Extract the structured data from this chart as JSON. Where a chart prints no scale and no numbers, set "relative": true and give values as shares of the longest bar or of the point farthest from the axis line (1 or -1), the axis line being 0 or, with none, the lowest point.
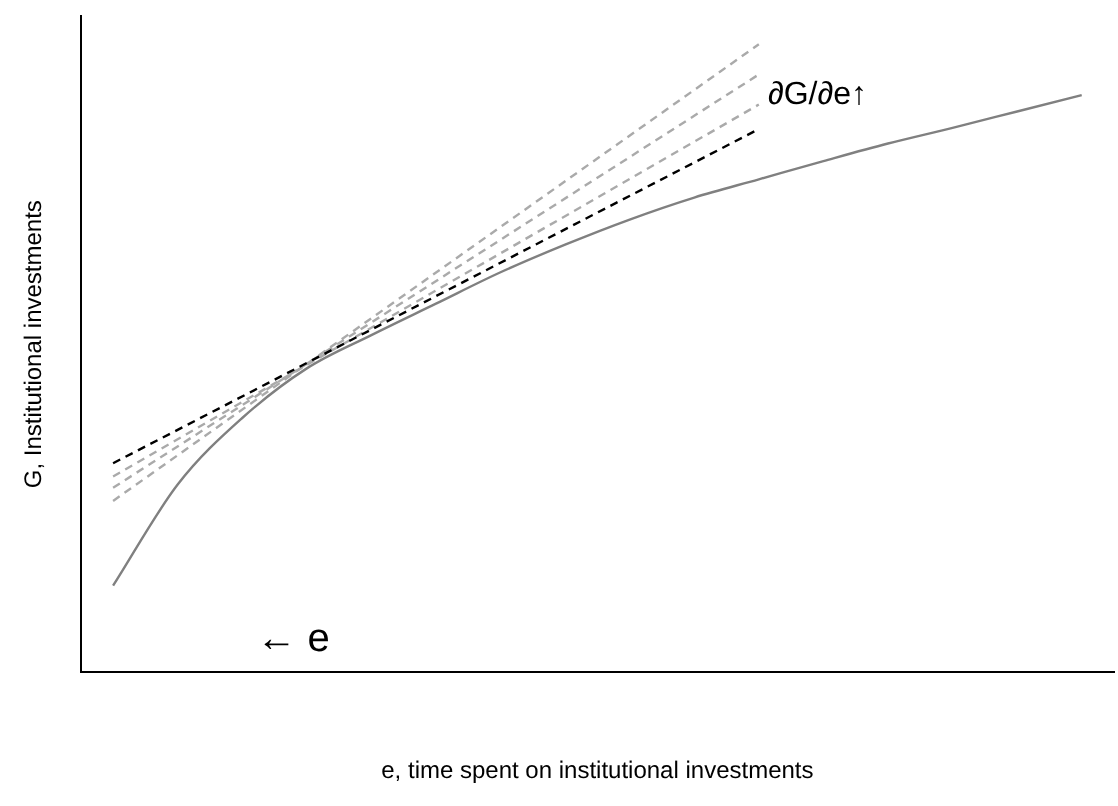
{
  "chart_data": {
    "type": "line",
    "relative": true,
    "xlabel": "e, time spent on institutional investments",
    "ylabel": "G, Institutional investments",
    "annotations": [
      "∂G/∂e↑",
      "← e"
    ],
    "grid": false,
    "legend": false,
    "marker": "none",
    "categories": [
      null,
      null,
      null,
      null,
      null,
      null,
      null,
      null,
      null,
      null,
      null,
      null,
      null,
      null,
      null,
      null
    ],
    "series": [
      {
        "color": "#808080",
        "line_style": "solid",
        "values": [
          0.138,
          0.299,
          0.405,
          0.484,
          0.537,
          0.587,
          0.637,
          0.681,
          0.721,
          0.756,
          0.785,
          0.814,
          0.842,
          0.867,
          0.893,
          0.919
        ]
      },
      {
        "color": "#000000",
        "line_style": "dashed",
        "values": [
          0.333,
          null,
          null,
          null,
          null,
          null,
          null,
          null,
          null,
          null,
          0.865,
          null,
          null,
          null,
          null,
          null
        ]
      },
      {
        "color": "#aaaaaa",
        "line_style": "dashed",
        "values": [
          0.312,
          null,
          null,
          null,
          null,
          null,
          null,
          null,
          null,
          null,
          0.904,
          null,
          null,
          null,
          null,
          null
        ]
      },
      {
        "color": "#aaaaaa",
        "line_style": "dashed",
        "values": [
          0.294,
          null,
          null,
          null,
          null,
          null,
          null,
          null,
          null,
          null,
          0.952,
          null,
          null,
          null,
          null,
          null
        ]
      },
      {
        "color": "#aaaaaa",
        "line_style": "dashed",
        "values": [
          0.273,
          null,
          null,
          null,
          null,
          null,
          null,
          null,
          null,
          null,
          1.0,
          null,
          null,
          null,
          null,
          null
        ]
      }
    ]
  }
}
